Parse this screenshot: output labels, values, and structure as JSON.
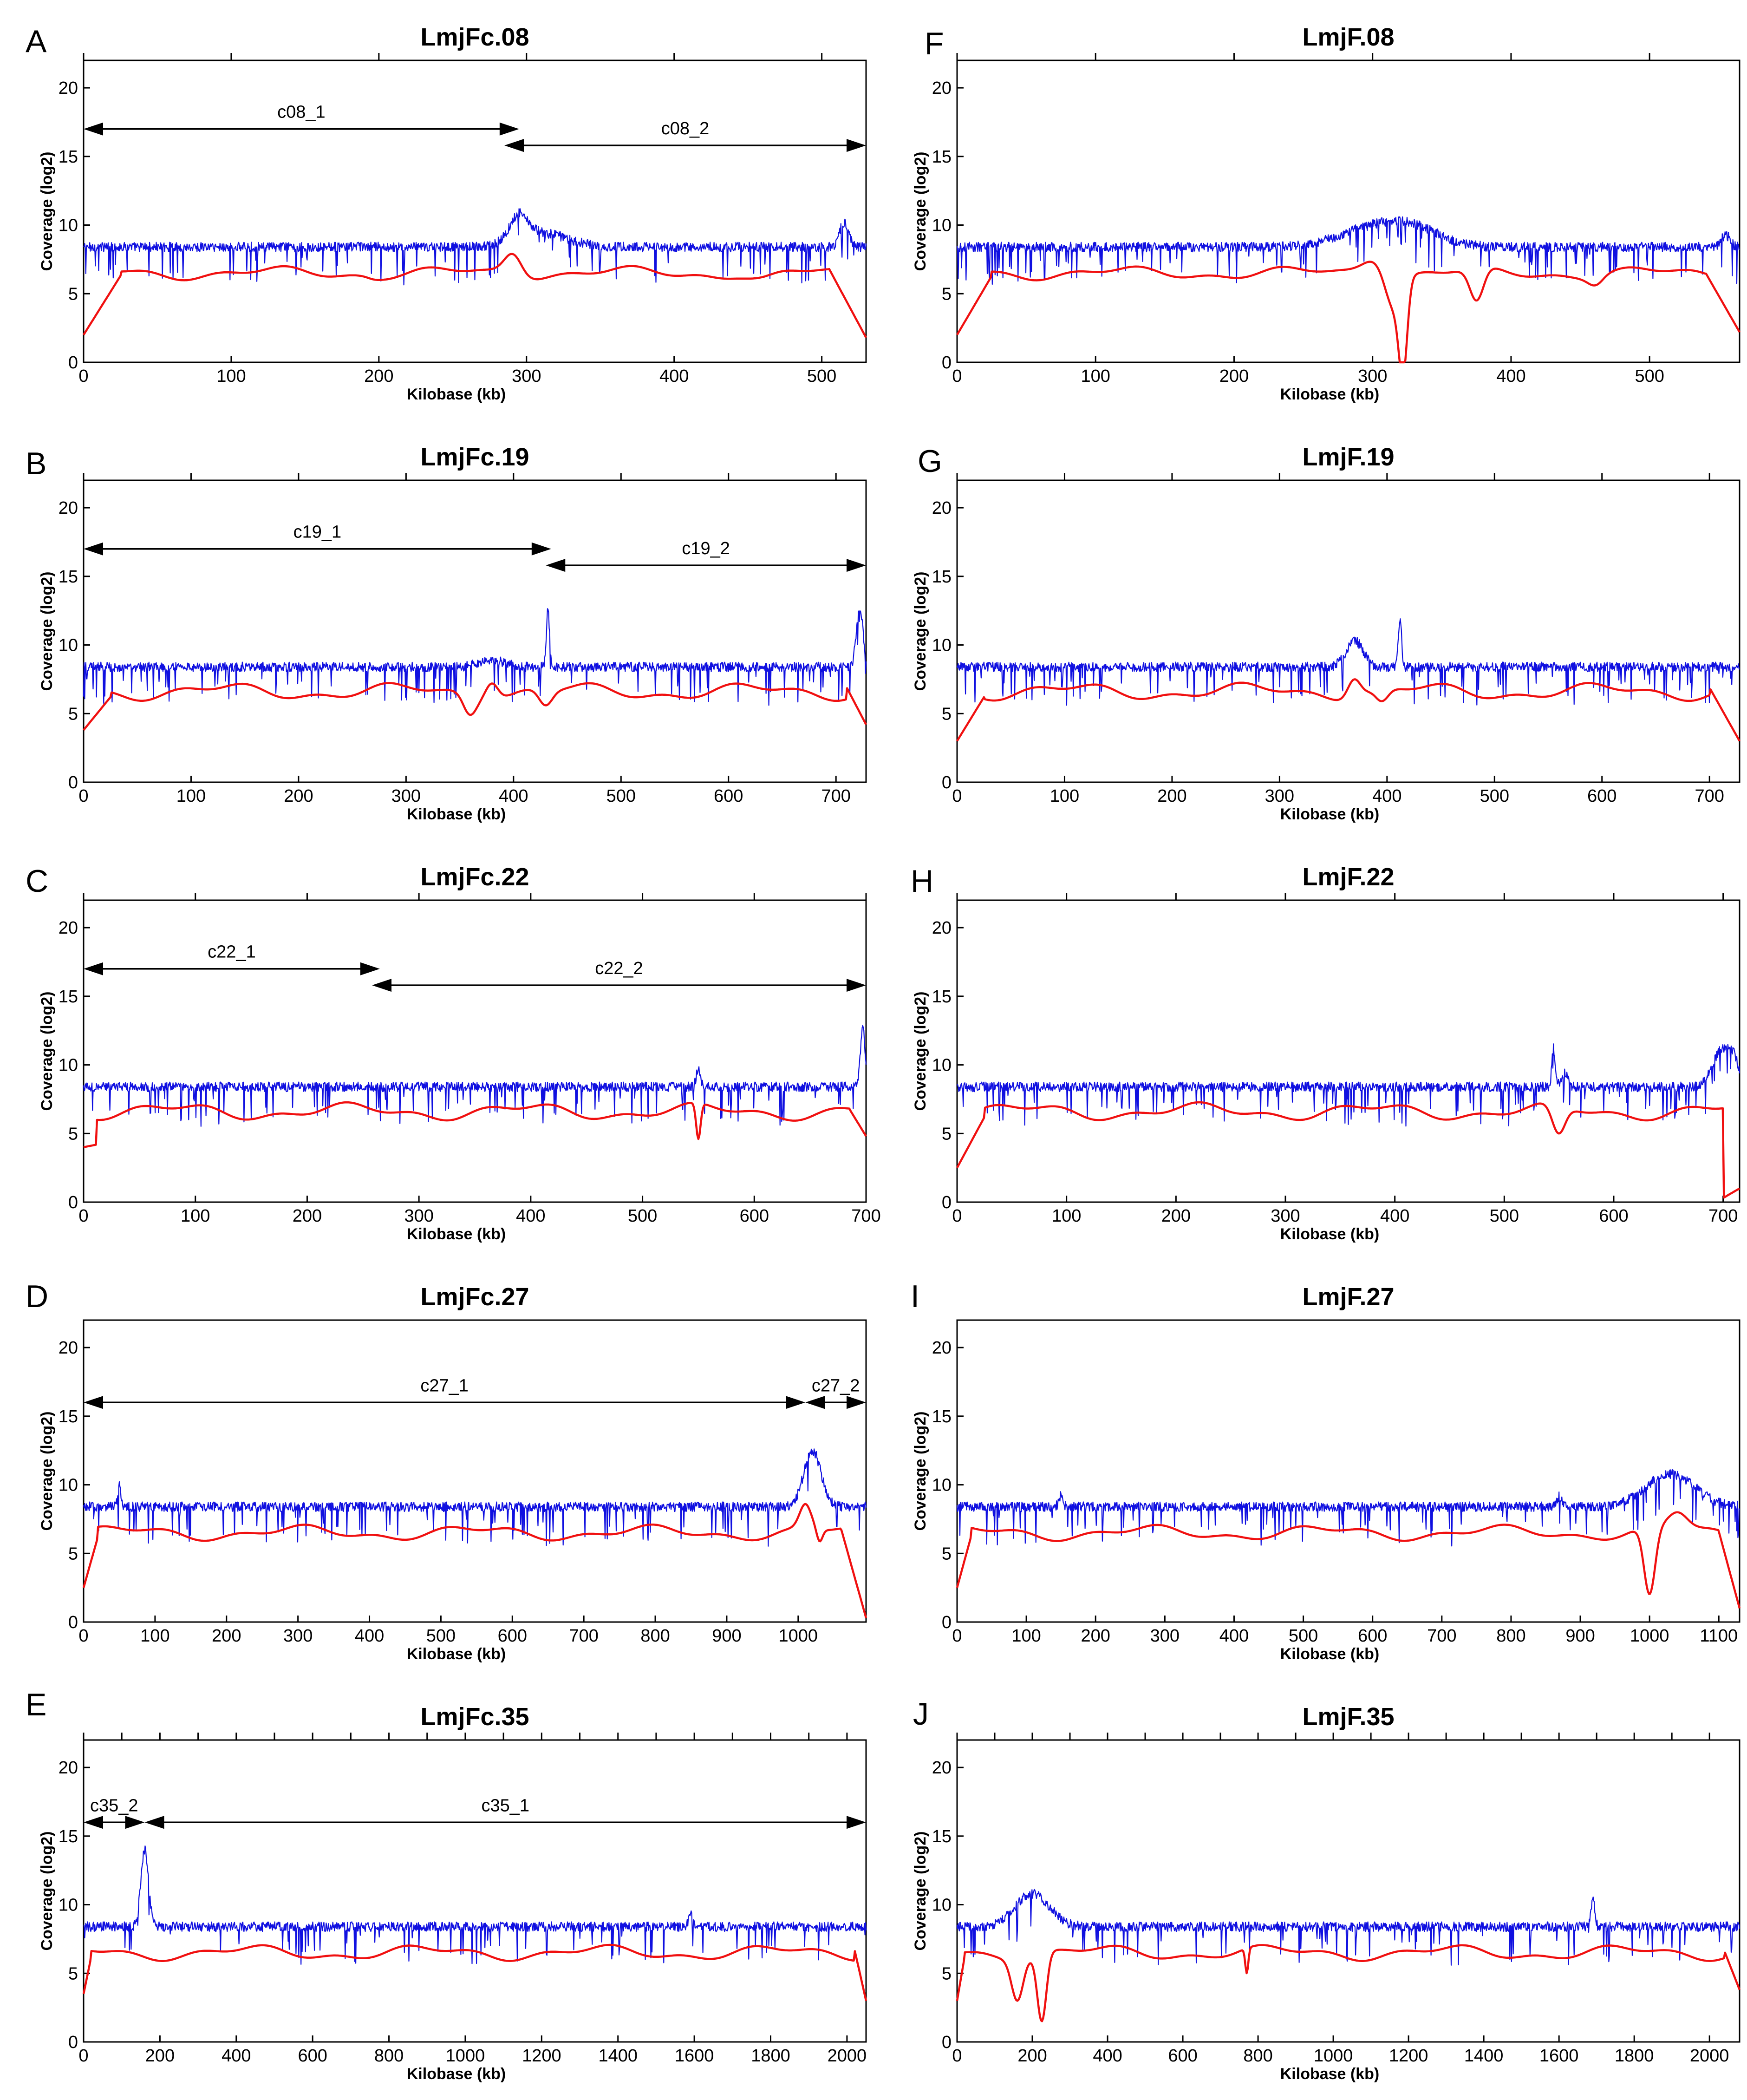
{
  "figure": {
    "y_label": "Coverage (log2)",
    "x_label": "Kilobase (kb)"
  },
  "colors": {
    "blue": "#1010e0",
    "red": "#f01010",
    "axis": "#000000"
  },
  "chart_data": [
    {
      "letter": "A",
      "title": "LmjFc.08",
      "type": "line",
      "xlabel": "Kilobase (kb)",
      "ylabel": "Coverage (log2)",
      "xlim": [
        0,
        530
      ],
      "ylim": [
        0,
        22
      ],
      "xticks": [
        0,
        100,
        200,
        300,
        400,
        500
      ],
      "yticks": [
        0,
        5,
        10,
        15,
        20
      ],
      "top_ticks": [
        0,
        100,
        200,
        300,
        400,
        500
      ],
      "contigs": [
        {
          "label": "c08_1",
          "start": 0,
          "end": 295,
          "y": 17.0
        },
        {
          "label": "c08_2",
          "start": 285,
          "end": 530,
          "y": 15.8
        }
      ],
      "series": [
        {
          "name": "blue",
          "baseline": 8.4,
          "noise": 0.35,
          "dips": 0.07,
          "features": [
            [
              295,
              10.2,
              6
            ],
            [
              310,
              9.4,
              18
            ],
            [
              515,
              10.2,
              3
            ]
          ]
        },
        {
          "name": "red",
          "baseline": 6.5,
          "wave": 0.35,
          "edges": [
            [
              0,
              2.0
            ],
            [
              25,
              6.3
            ],
            [
              505,
              6.8
            ],
            [
              530,
              1.8
            ]
          ],
          "features": [
            [
              290,
              7.9,
              6
            ],
            [
              450,
              6.1,
              15
            ],
            [
              200,
              6.0,
              5
            ]
          ]
        }
      ]
    },
    {
      "letter": "F",
      "title": "LmjF.08",
      "type": "line",
      "xlabel": "Kilobase (kb)",
      "ylabel": "Coverage (log2)",
      "xlim": [
        0,
        565
      ],
      "ylim": [
        0,
        22
      ],
      "xticks": [
        0,
        100,
        200,
        300,
        400,
        500
      ],
      "yticks": [
        0,
        5,
        10,
        15,
        20
      ],
      "top_ticks": [
        0,
        100,
        200,
        300,
        400,
        500
      ],
      "contigs": [],
      "series": [
        {
          "name": "blue",
          "baseline": 8.4,
          "noise": 0.35,
          "dips": 0.07,
          "features": [
            [
              300,
              9.7,
              25
            ],
            [
              330,
              9.5,
              20
            ],
            [
              555,
              9.3,
              3
            ]
          ]
        },
        {
          "name": "red",
          "baseline": 6.5,
          "wave": 0.35,
          "edges": [
            [
              0,
              2.0
            ],
            [
              25,
              6.3
            ],
            [
              540,
              6.6
            ],
            [
              565,
              2.2
            ]
          ],
          "features": [
            [
              300,
              7.4,
              10
            ],
            [
              315,
              3.5,
              6
            ],
            [
              322,
              0.2,
              3
            ],
            [
              375,
              4.5,
              5
            ],
            [
              460,
              5.6,
              5
            ]
          ]
        }
      ]
    },
    {
      "letter": "B",
      "title": "LmjFc.19",
      "type": "line",
      "xlabel": "Kilobase (kb)",
      "ylabel": "Coverage (log2)",
      "xlim": [
        0,
        728
      ],
      "ylim": [
        0,
        22
      ],
      "xticks": [
        0,
        100,
        200,
        300,
        400,
        500,
        600,
        700
      ],
      "yticks": [
        0,
        5,
        10,
        15,
        20
      ],
      "top_ticks": [
        0,
        100,
        200,
        300,
        400,
        500,
        600,
        700
      ],
      "contigs": [
        {
          "label": "c19_1",
          "start": 0,
          "end": 435,
          "y": 17.0
        },
        {
          "label": "c19_2",
          "start": 430,
          "end": 728,
          "y": 15.8
        }
      ],
      "series": [
        {
          "name": "blue",
          "baseline": 8.4,
          "noise": 0.35,
          "dips": 0.07,
          "features": [
            [
              380,
              8.9,
              12
            ],
            [
              432,
              12.5,
              1.5
            ],
            [
              722,
              12.8,
              3
            ]
          ]
        },
        {
          "name": "red",
          "baseline": 6.6,
          "wave": 0.45,
          "edges": [
            [
              0,
              3.8
            ],
            [
              25,
              6.2
            ],
            [
              710,
              6.9
            ],
            [
              728,
              4.2
            ]
          ],
          "features": [
            [
              360,
              4.9,
              6
            ],
            [
              380,
              7.2,
              6
            ],
            [
              430,
              5.6,
              6
            ]
          ]
        }
      ]
    },
    {
      "letter": "G",
      "title": "LmjF.19",
      "type": "line",
      "xlabel": "Kilobase (kb)",
      "ylabel": "Coverage (log2)",
      "xlim": [
        0,
        728
      ],
      "ylim": [
        0,
        22
      ],
      "xticks": [
        0,
        100,
        200,
        300,
        400,
        500,
        600,
        700
      ],
      "yticks": [
        0,
        5,
        10,
        15,
        20
      ],
      "top_ticks": [
        0,
        100,
        200,
        300,
        400,
        500,
        600,
        700
      ],
      "contigs": [],
      "series": [
        {
          "name": "blue",
          "baseline": 8.4,
          "noise": 0.35,
          "dips": 0.07,
          "features": [
            [
              370,
              10.3,
              8
            ],
            [
              412,
              12.0,
              1.5
            ]
          ]
        },
        {
          "name": "red",
          "baseline": 6.6,
          "wave": 0.45,
          "edges": [
            [
              0,
              3.0
            ],
            [
              25,
              6.2
            ],
            [
              700,
              6.9
            ],
            [
              728,
              3.0
            ]
          ],
          "features": [
            [
              370,
              7.5,
              6
            ],
            [
              395,
              5.9,
              6
            ]
          ]
        }
      ]
    },
    {
      "letter": "C",
      "title": "LmjFc.22",
      "type": "line",
      "xlabel": "Kilobase (kb)",
      "ylabel": "Coverage (log2)",
      "xlim": [
        0,
        700
      ],
      "ylim": [
        0,
        22
      ],
      "xticks": [
        0,
        100,
        200,
        300,
        400,
        500,
        600,
        700
      ],
      "yticks": [
        0,
        5,
        10,
        15,
        20
      ],
      "top_ticks": [
        0,
        100,
        200,
        300,
        400,
        500,
        600,
        700
      ],
      "contigs": [
        {
          "label": "c22_1",
          "start": 0,
          "end": 265,
          "y": 17.0
        },
        {
          "label": "c22_2",
          "start": 258,
          "end": 700,
          "y": 15.8
        }
      ],
      "series": [
        {
          "name": "blue",
          "baseline": 8.4,
          "noise": 0.35,
          "dips": 0.07,
          "features": [
            [
              550,
              9.6,
              2
            ],
            [
              697,
              12.8,
              2
            ]
          ]
        },
        {
          "name": "red",
          "baseline": 6.6,
          "wave": 0.45,
          "edges": [
            [
              0,
              4.0
            ],
            [
              12,
              4.2
            ],
            [
              20,
              6.2
            ],
            [
              685,
              6.8
            ],
            [
              700,
              4.8
            ]
          ],
          "features": [
            [
              550,
              4.6,
              2
            ]
          ]
        }
      ]
    },
    {
      "letter": "H",
      "title": "LmjF.22",
      "type": "line",
      "xlabel": "Kilobase (kb)",
      "ylabel": "Coverage (log2)",
      "xlim": [
        0,
        715
      ],
      "ylim": [
        0,
        22
      ],
      "xticks": [
        0,
        100,
        200,
        300,
        400,
        500,
        600,
        700
      ],
      "yticks": [
        0,
        5,
        10,
        15,
        20
      ],
      "top_ticks": [
        0,
        100,
        200,
        300,
        400,
        500,
        600,
        700
      ],
      "contigs": [],
      "series": [
        {
          "name": "blue",
          "baseline": 8.4,
          "noise": 0.35,
          "dips": 0.07,
          "features": [
            [
              545,
              11.2,
              1.5
            ],
            [
              555,
              9.5,
              3
            ],
            [
              698,
              11.0,
              8
            ],
            [
              710,
              10.0,
              5
            ]
          ]
        },
        {
          "name": "red",
          "baseline": 6.6,
          "wave": 0.45,
          "edges": [
            [
              0,
              2.5
            ],
            [
              25,
              6.2
            ],
            [
              685,
              6.6
            ],
            [
              700,
              0.3
            ],
            [
              715,
              1.0
            ]
          ],
          "features": [
            [
              550,
              5.0,
              6
            ]
          ]
        }
      ]
    },
    {
      "letter": "D",
      "title": "LmjFc.27",
      "type": "line",
      "xlabel": "Kilobase (kb)",
      "ylabel": "Coverage (log2)",
      "xlim": [
        0,
        1095
      ],
      "ylim": [
        0,
        22
      ],
      "xticks": [
        0,
        100,
        200,
        300,
        400,
        500,
        600,
        700,
        800,
        900,
        1000
      ],
      "yticks": [
        0,
        5,
        10,
        15,
        20
      ],
      "top_ticks": [],
      "contigs": [
        {
          "label": "c27_1",
          "start": 0,
          "end": 1010,
          "y": 16.0
        },
        {
          "label": "c27_2",
          "start": 1010,
          "end": 1095,
          "y": 16.0
        }
      ],
      "series": [
        {
          "name": "blue",
          "baseline": 8.4,
          "noise": 0.35,
          "dips": 0.06,
          "features": [
            [
              50,
              10.0,
              2
            ],
            [
              1020,
              12.5,
              12
            ]
          ]
        },
        {
          "name": "red",
          "baseline": 6.5,
          "wave": 0.4,
          "edges": [
            [
              0,
              2.5
            ],
            [
              20,
              6.2
            ],
            [
              1060,
              6.8
            ],
            [
              1095,
              0.3
            ]
          ],
          "features": [
            [
              1010,
              8.6,
              8
            ],
            [
              1030,
              5.8,
              4
            ]
          ]
        }
      ]
    },
    {
      "letter": "I",
      "title": "LmjF.27",
      "type": "line",
      "xlabel": "Kilobase (kb)",
      "ylabel": "Coverage (log2)",
      "xlim": [
        0,
        1130
      ],
      "ylim": [
        0,
        22
      ],
      "xticks": [
        0,
        100,
        200,
        300,
        400,
        500,
        600,
        700,
        800,
        900,
        1000,
        1100
      ],
      "yticks": [
        0,
        5,
        10,
        15,
        20
      ],
      "top_ticks": [],
      "contigs": [],
      "series": [
        {
          "name": "blue",
          "baseline": 8.4,
          "noise": 0.35,
          "dips": 0.06,
          "features": [
            [
              1030,
              10.8,
              35
            ],
            [
              150,
              9.2,
              3
            ],
            [
              870,
              9.2,
              3
            ]
          ]
        },
        {
          "name": "red",
          "baseline": 6.5,
          "wave": 0.4,
          "edges": [
            [
              0,
              2.5
            ],
            [
              20,
              6.2
            ],
            [
              1100,
              6.6
            ],
            [
              1130,
              1.0
            ]
          ],
          "features": [
            [
              1000,
              2.0,
              8
            ],
            [
              1040,
              8.0,
              15
            ]
          ]
        }
      ]
    },
    {
      "letter": "E",
      "title": "LmjFc.35",
      "type": "line",
      "xlabel": "Kilobase (kb)",
      "ylabel": "Coverage (log2)",
      "xlim": [
        0,
        2050
      ],
      "ylim": [
        0,
        22
      ],
      "xticks": [
        0,
        200,
        400,
        600,
        800,
        1000,
        1200,
        1400,
        1600,
        1800,
        2000
      ],
      "yticks": [
        0,
        5,
        10,
        15,
        20
      ],
      "top_ticks": [
        0,
        100,
        200,
        300,
        400,
        500,
        600,
        700,
        800,
        900,
        1000,
        1100,
        1200,
        1300,
        1400,
        1500,
        1600,
        1700,
        1800,
        1900,
        2000
      ],
      "contigs": [
        {
          "label": "c35_2",
          "start": 0,
          "end": 160,
          "y": 16.0
        },
        {
          "label": "c35_1",
          "start": 160,
          "end": 2050,
          "y": 16.0
        }
      ],
      "series": [
        {
          "name": "blue",
          "baseline": 8.4,
          "noise": 0.35,
          "dips": 0.06,
          "features": [
            [
              160,
              14.0,
              10
            ],
            [
              1590,
              9.3,
              5
            ]
          ]
        },
        {
          "name": "red",
          "baseline": 6.5,
          "wave": 0.4,
          "edges": [
            [
              0,
              3.5
            ],
            [
              20,
              6.2
            ],
            [
              2020,
              6.7
            ],
            [
              2050,
              3.0
            ]
          ],
          "features": []
        }
      ]
    },
    {
      "letter": "J",
      "title": "LmjF.35",
      "type": "line",
      "xlabel": "Kilobase (kb)",
      "ylabel": "Coverage (log2)",
      "xlim": [
        0,
        2080
      ],
      "ylim": [
        0,
        22
      ],
      "xticks": [
        0,
        200,
        400,
        600,
        800,
        1000,
        1200,
        1400,
        1600,
        1800,
        2000
      ],
      "yticks": [
        0,
        5,
        10,
        15,
        20
      ],
      "top_ticks": [
        0,
        100,
        200,
        300,
        400,
        500,
        600,
        700,
        800,
        900,
        1000,
        1100,
        1200,
        1300,
        1400,
        1500,
        1600,
        1700,
        1800,
        1900,
        2000
      ],
      "contigs": [],
      "series": [
        {
          "name": "blue",
          "baseline": 8.4,
          "noise": 0.35,
          "dips": 0.06,
          "features": [
            [
              200,
              10.8,
              45
            ],
            [
              1690,
              10.4,
              5
            ]
          ]
        },
        {
          "name": "red",
          "baseline": 6.5,
          "wave": 0.4,
          "edges": [
            [
              0,
              3.0
            ],
            [
              20,
              6.2
            ],
            [
              2040,
              6.6
            ],
            [
              2080,
              3.8
            ]
          ],
          "features": [
            [
              160,
              3.0,
              15
            ],
            [
              225,
              1.5,
              12
            ],
            [
              770,
              5.0,
              4
            ]
          ]
        }
      ]
    }
  ]
}
